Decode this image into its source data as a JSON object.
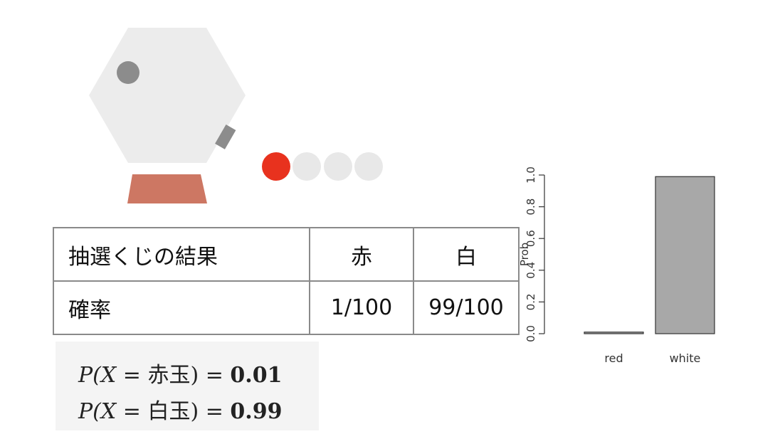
{
  "table": {
    "header": {
      "label": "抽選くじの結果",
      "red": "赤",
      "white": "白"
    },
    "row": {
      "label": "確率",
      "red": "1/100",
      "white": "99/100"
    }
  },
  "formula": {
    "line1": {
      "var": "P(X",
      "op": " = ",
      "item": "赤玉",
      "close": ")",
      "eq": " = ",
      "value": "0.01"
    },
    "line2": {
      "var": "P(X",
      "op": " = ",
      "item": "白玉",
      "close": ")",
      "eq": " = ",
      "value": "0.99"
    }
  },
  "colors": {
    "machine_body": "#ececec",
    "knob": "#8c8c8c",
    "base": "#cd7763",
    "red_ball": "#e8321e",
    "white_ball": "#e8e8e8",
    "bar": "#a8a8a8"
  },
  "chart_data": {
    "type": "bar",
    "categories": [
      "red",
      "white"
    ],
    "values": [
      0.01,
      0.99
    ],
    "ylabel": "Prob",
    "ylim": [
      0,
      1.0
    ],
    "yticks": [
      0.0,
      0.2,
      0.4,
      0.6,
      0.8,
      1.0
    ],
    "yticklabels": [
      "0.0",
      "0.2",
      "0.4",
      "0.6",
      "0.8",
      "1.0"
    ]
  }
}
